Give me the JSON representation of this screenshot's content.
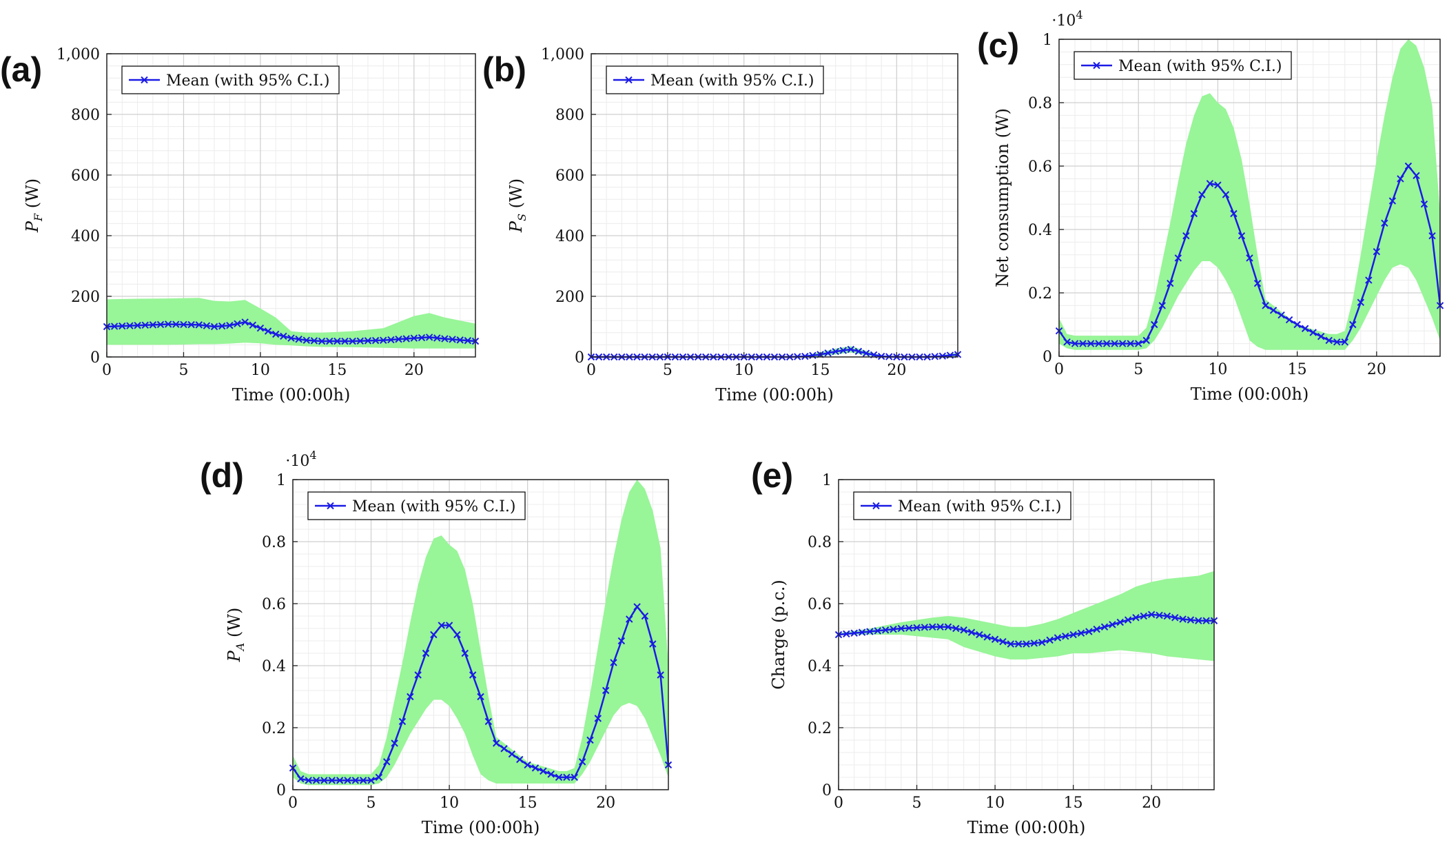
{
  "colors": {
    "mean": "#1a1ae6",
    "ci_band": "#98f598",
    "grid_major": "#cfcfcf",
    "grid_minor": "#ececec",
    "frame": "#222222"
  },
  "chart_data": [
    {
      "panel": "(a)",
      "type": "line",
      "xlabel": "Time (00:00h)",
      "ylabel": "P_F (W)",
      "ylabel_main": "P",
      "ylabel_sub": "F",
      "ylabel_unit": " (W)",
      "xlim": [
        0,
        24
      ],
      "ylim": [
        0,
        1000
      ],
      "xticks": [
        0,
        5,
        10,
        15,
        20
      ],
      "yticks": [
        0,
        200,
        400,
        600,
        800,
        1000
      ],
      "yticklabels": [
        "0",
        "200",
        "400",
        "600",
        "800",
        "1,000"
      ],
      "scale_label": "",
      "legend": "Mean (with 95% C.I.)",
      "legend_position": "top-left",
      "grid": true,
      "series": [
        {
          "name": "Mean (with 95% C.I.)",
          "x": [
            0,
            2,
            4,
            6,
            7,
            8,
            9,
            10,
            11,
            12,
            13,
            14,
            16,
            18,
            20,
            21,
            22,
            24
          ],
          "y": [
            100,
            104,
            108,
            106,
            100,
            104,
            115,
            95,
            75,
            62,
            55,
            52,
            52,
            55,
            62,
            65,
            60,
            52
          ],
          "lower": [
            40,
            40,
            40,
            42,
            42,
            44,
            47,
            45,
            40,
            38,
            35,
            33,
            32,
            30,
            28,
            28,
            28,
            28
          ],
          "upper": [
            190,
            192,
            193,
            195,
            185,
            183,
            188,
            160,
            130,
            85,
            80,
            80,
            85,
            95,
            135,
            145,
            130,
            110
          ]
        }
      ]
    },
    {
      "panel": "(b)",
      "type": "line",
      "xlabel": "Time (00:00h)",
      "ylabel": "P_S (W)",
      "ylabel_main": "P",
      "ylabel_sub": "S",
      "ylabel_unit": " (W)",
      "xlim": [
        0,
        24
      ],
      "ylim": [
        0,
        1000
      ],
      "xticks": [
        0,
        5,
        10,
        15,
        20
      ],
      "yticks": [
        0,
        200,
        400,
        600,
        800,
        1000
      ],
      "yticklabels": [
        "0",
        "200",
        "400",
        "600",
        "800",
        "1,000"
      ],
      "scale_label": "",
      "legend": "Mean (with 95% C.I.)",
      "legend_position": "top-left",
      "grid": true,
      "series": [
        {
          "name": "Mean (with 95% C.I.)",
          "x": [
            0,
            5,
            10,
            13,
            14,
            15,
            16,
            17,
            18,
            19,
            20,
            22,
            23,
            24
          ],
          "y": [
            0,
            0,
            0,
            0,
            2,
            8,
            18,
            25,
            12,
            2,
            0,
            0,
            3,
            8
          ],
          "lower": [
            0,
            0,
            0,
            0,
            0,
            2,
            8,
            14,
            5,
            0,
            0,
            0,
            0,
            2
          ],
          "upper": [
            2,
            2,
            2,
            2,
            5,
            16,
            28,
            36,
            20,
            5,
            2,
            2,
            6,
            14
          ]
        }
      ]
    },
    {
      "panel": "(c)",
      "type": "line",
      "xlabel": "Time (00:00h)",
      "ylabel": "Net consumption (W)",
      "xlim": [
        0,
        24
      ],
      "ylim": [
        0,
        1
      ],
      "xticks": [
        0,
        5,
        10,
        15,
        20
      ],
      "yticks": [
        0,
        0.2,
        0.4,
        0.6,
        0.8,
        1
      ],
      "yticklabels": [
        "0",
        "0.2",
        "0.4",
        "0.6",
        "0.8",
        "1"
      ],
      "scale_label": "·10",
      "scale_exp": "4",
      "legend": "Mean (with 95% C.I.)",
      "legend_position": "top-left",
      "grid": true,
      "series": [
        {
          "name": "Mean (with 95% C.I.)",
          "x": [
            0,
            0.5,
            1,
            3,
            5,
            5.5,
            6,
            6.5,
            7,
            7.5,
            8,
            8.5,
            9,
            9.5,
            10,
            10.5,
            11,
            11.5,
            12,
            12.5,
            13,
            15,
            17,
            17.5,
            18,
            18.5,
            19,
            19.5,
            20,
            20.5,
            21,
            21.5,
            22,
            22.5,
            23,
            23.5,
            24
          ],
          "y": [
            0.08,
            0.045,
            0.04,
            0.04,
            0.04,
            0.05,
            0.1,
            0.16,
            0.23,
            0.31,
            0.38,
            0.45,
            0.51,
            0.545,
            0.54,
            0.51,
            0.45,
            0.38,
            0.31,
            0.23,
            0.16,
            0.1,
            0.05,
            0.045,
            0.045,
            0.1,
            0.17,
            0.24,
            0.33,
            0.42,
            0.49,
            0.56,
            0.6,
            0.57,
            0.48,
            0.38,
            0.16
          ],
          "lower": [
            0.04,
            0.025,
            0.02,
            0.02,
            0.02,
            0.025,
            0.05,
            0.09,
            0.14,
            0.19,
            0.23,
            0.27,
            0.3,
            0.3,
            0.28,
            0.24,
            0.19,
            0.12,
            0.05,
            0.03,
            0.02,
            0.02,
            0.02,
            0.02,
            0.02,
            0.05,
            0.09,
            0.14,
            0.19,
            0.24,
            0.28,
            0.29,
            0.28,
            0.24,
            0.18,
            0.12,
            0.05
          ],
          "upper": [
            0.12,
            0.07,
            0.065,
            0.065,
            0.065,
            0.09,
            0.18,
            0.3,
            0.42,
            0.55,
            0.67,
            0.76,
            0.82,
            0.83,
            0.8,
            0.78,
            0.72,
            0.62,
            0.48,
            0.32,
            0.18,
            0.1,
            0.07,
            0.07,
            0.08,
            0.18,
            0.32,
            0.47,
            0.62,
            0.76,
            0.88,
            0.97,
            1,
            0.98,
            0.91,
            0.79,
            0.45
          ]
        }
      ]
    },
    {
      "panel": "(d)",
      "type": "line",
      "xlabel": "Time (00:00h)",
      "ylabel": "P_A (W)",
      "ylabel_main": "P",
      "ylabel_sub": "A",
      "ylabel_unit": " (W)",
      "xlim": [
        0,
        24
      ],
      "ylim": [
        0,
        1
      ],
      "xticks": [
        0,
        5,
        10,
        15,
        20
      ],
      "yticks": [
        0,
        0.2,
        0.4,
        0.6,
        0.8,
        1
      ],
      "yticklabels": [
        "0",
        "0.2",
        "0.4",
        "0.6",
        "0.8",
        "1"
      ],
      "scale_label": "·10",
      "scale_exp": "4",
      "legend": "Mean (with 95% C.I.)",
      "legend_position": "top-left",
      "grid": true,
      "series": [
        {
          "name": "Mean (with 95% C.I.)",
          "x": [
            0,
            0.5,
            1,
            3,
            5,
            5.5,
            6,
            6.5,
            7,
            7.5,
            8,
            8.5,
            9,
            9.5,
            10,
            10.5,
            11,
            11.5,
            12,
            12.5,
            13,
            15,
            17,
            17.5,
            18,
            18.5,
            19,
            19.5,
            20,
            20.5,
            21,
            21.5,
            22,
            22.5,
            23,
            23.5,
            24
          ],
          "y": [
            0.07,
            0.035,
            0.03,
            0.03,
            0.03,
            0.04,
            0.09,
            0.15,
            0.22,
            0.3,
            0.37,
            0.44,
            0.5,
            0.53,
            0.53,
            0.5,
            0.44,
            0.37,
            0.3,
            0.22,
            0.15,
            0.08,
            0.04,
            0.04,
            0.04,
            0.09,
            0.16,
            0.23,
            0.32,
            0.41,
            0.48,
            0.55,
            0.59,
            0.56,
            0.47,
            0.37,
            0.08
          ],
          "lower": [
            0.04,
            0.02,
            0.015,
            0.015,
            0.015,
            0.02,
            0.04,
            0.08,
            0.13,
            0.18,
            0.22,
            0.26,
            0.29,
            0.29,
            0.27,
            0.23,
            0.18,
            0.11,
            0.05,
            0.03,
            0.02,
            0.02,
            0.02,
            0.02,
            0.02,
            0.05,
            0.09,
            0.14,
            0.19,
            0.24,
            0.27,
            0.28,
            0.27,
            0.23,
            0.17,
            0.11,
            0.04
          ],
          "upper": [
            0.11,
            0.06,
            0.05,
            0.05,
            0.05,
            0.08,
            0.17,
            0.29,
            0.41,
            0.54,
            0.66,
            0.75,
            0.81,
            0.82,
            0.79,
            0.77,
            0.71,
            0.6,
            0.45,
            0.3,
            0.17,
            0.09,
            0.06,
            0.06,
            0.07,
            0.17,
            0.31,
            0.46,
            0.61,
            0.75,
            0.87,
            0.96,
            1,
            0.97,
            0.9,
            0.78,
            0.4
          ]
        }
      ]
    },
    {
      "panel": "(e)",
      "type": "line",
      "xlabel": "Time (00:00h)",
      "ylabel": "Charge (p.c.)",
      "xlim": [
        0,
        24
      ],
      "ylim": [
        0,
        1
      ],
      "xticks": [
        0,
        5,
        10,
        15,
        20
      ],
      "yticks": [
        0,
        0.2,
        0.4,
        0.6,
        0.8,
        1
      ],
      "yticklabels": [
        "0",
        "0.2",
        "0.4",
        "0.6",
        "0.8",
        "1"
      ],
      "scale_label": "",
      "legend": "Mean (with 95% C.I.)",
      "legend_position": "top-left",
      "grid": true,
      "series": [
        {
          "name": "Mean (with 95% C.I.)",
          "x": [
            0,
            2,
            4,
            6,
            7,
            8,
            9,
            10,
            11,
            12,
            13,
            14,
            15,
            16,
            17,
            18,
            19,
            20,
            21,
            22,
            23,
            24
          ],
          "y": [
            0.5,
            0.51,
            0.52,
            0.525,
            0.525,
            0.515,
            0.5,
            0.485,
            0.47,
            0.47,
            0.475,
            0.49,
            0.5,
            0.51,
            0.525,
            0.54,
            0.555,
            0.565,
            0.56,
            0.55,
            0.545,
            0.545
          ],
          "lower": [
            0.5,
            0.5,
            0.5,
            0.49,
            0.485,
            0.46,
            0.445,
            0.43,
            0.42,
            0.42,
            0.425,
            0.43,
            0.44,
            0.44,
            0.445,
            0.45,
            0.445,
            0.44,
            0.43,
            0.425,
            0.42,
            0.415
          ],
          "upper": [
            0.505,
            0.52,
            0.54,
            0.555,
            0.56,
            0.555,
            0.545,
            0.535,
            0.525,
            0.525,
            0.535,
            0.55,
            0.57,
            0.59,
            0.61,
            0.63,
            0.655,
            0.67,
            0.68,
            0.685,
            0.69,
            0.705
          ]
        }
      ]
    }
  ]
}
